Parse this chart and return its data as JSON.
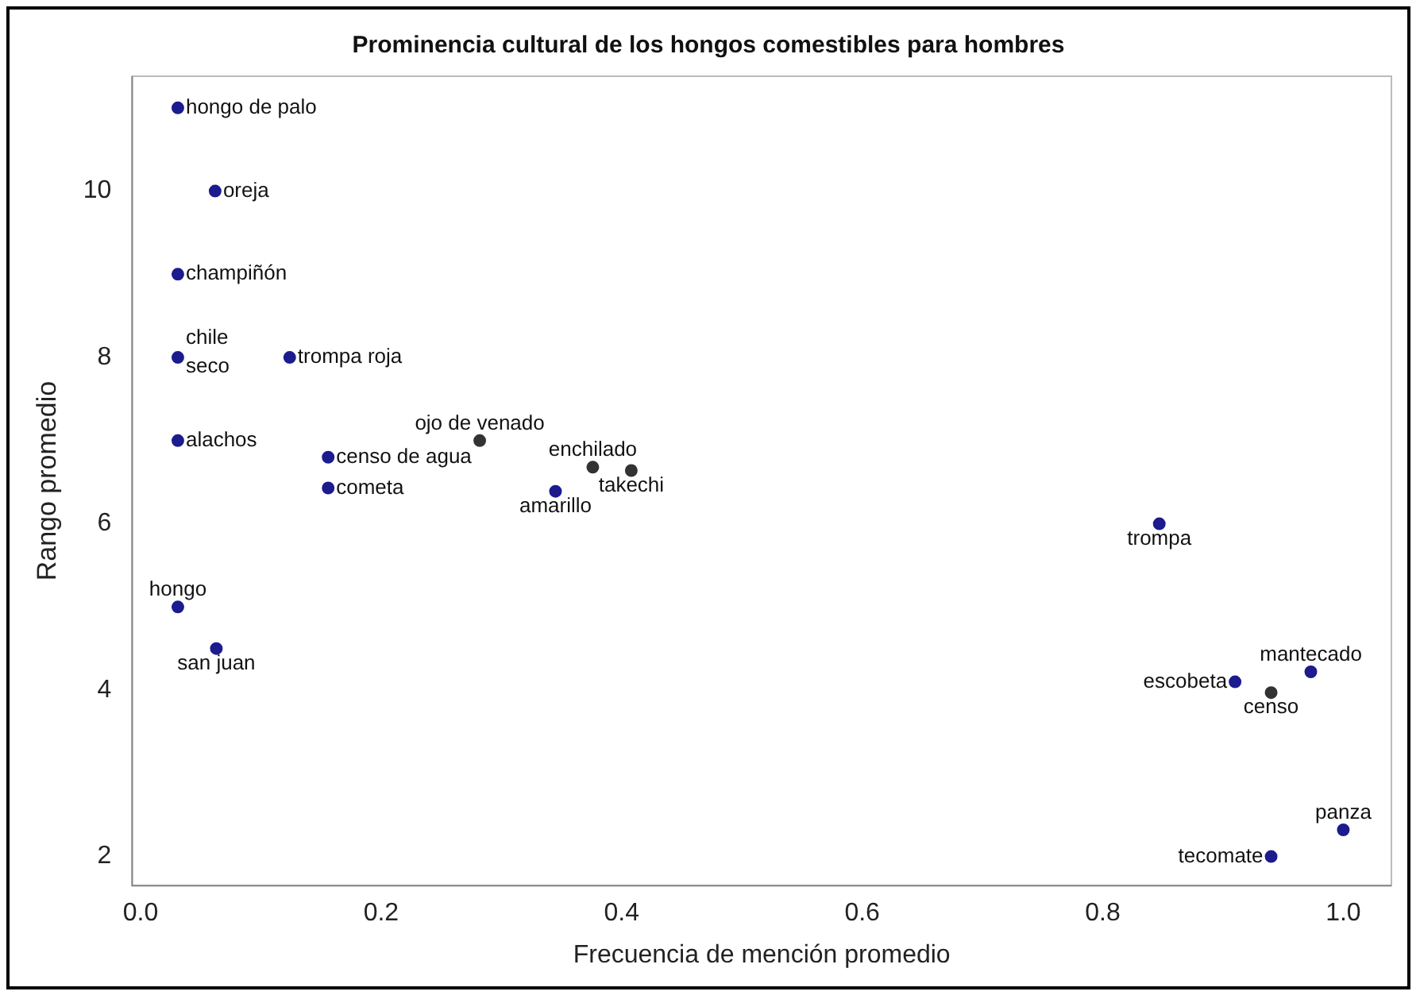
{
  "chart_data": {
    "type": "scatter",
    "title": "Prominencia cultural de los hongos comestibles para hombres",
    "xlabel": "Frecuencia de mención promedio",
    "ylabel": "Rango promedio",
    "x": [
      0.031,
      0.062,
      0.031,
      0.031,
      0.124,
      0.031,
      0.282,
      0.156,
      0.156,
      0.376,
      0.408,
      0.345,
      0.031,
      0.063,
      0.847,
      0.91,
      0.94,
      0.973,
      1.0,
      0.94
    ],
    "values": [
      11,
      10,
      9,
      8,
      8,
      7,
      7,
      6.8,
      6.43,
      6.68,
      6.64,
      6.39,
      5,
      4.5,
      6,
      4.1,
      3.97,
      4.22,
      2.32,
      2
    ],
    "value_labels": [
      "hongo de palo",
      "oreja",
      "champiñón",
      "chile seco",
      "trompa roja",
      "alachos",
      "ojo de venado",
      "censo de agua",
      "cometa",
      "enchilado",
      "takechi",
      "amarillo",
      "hongo",
      "san juan",
      "trompa",
      "escobeta",
      "censo",
      "mantecado",
      "panza",
      "tecomate"
    ],
    "colors": [
      "#1c1c8e",
      "#1c1c8e",
      "#1c1c8e",
      "#1c1c8e",
      "#1c1c8e",
      "#1c1c8e",
      "#333333",
      "#1c1c8e",
      "#1c1c8e",
      "#333333",
      "#333333",
      "#1c1c8e",
      "#1c1c8e",
      "#1c1c8e",
      "#1c1c8e",
      "#1c1c8e",
      "#333333",
      "#1c1c8e",
      "#1c1c8e",
      "#1c1c8e"
    ],
    "xlim": [
      -0.007,
      1.04
    ],
    "ylim": [
      1.65,
      11.38
    ],
    "xticks": [
      {
        "value": 0,
        "label": "0.0"
      },
      0.2,
      0.4,
      0.6,
      0.8,
      {
        "value": 1,
        "label": "1.0"
      }
    ],
    "yticks": [
      2,
      4,
      6,
      8,
      10
    ],
    "marker": "circle",
    "grid": false,
    "legend": false
  }
}
